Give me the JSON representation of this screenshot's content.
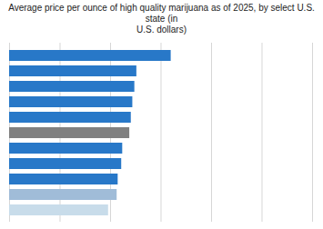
{
  "chart_data": {
    "type": "bar",
    "orientation": "horizontal",
    "title": "Average price per ounce of high quality marijuana as of 2025, by select U.S. state (in\nU.S. dollars)",
    "categories": [
      null,
      null,
      null,
      null,
      null,
      null,
      null,
      null,
      null,
      null,
      null
    ],
    "values": [
      320,
      252,
      248,
      244,
      241,
      238,
      224,
      222,
      215,
      213,
      196
    ],
    "colors": [
      "#2878c8",
      "#2878c8",
      "#2878c8",
      "#2878c8",
      "#2878c8",
      "#808080",
      "#2878c8",
      "#2878c8",
      "#2878c8",
      "#a0bcd8",
      "#c8dcea"
    ],
    "xlim": [
      0,
      600
    ],
    "xticks": [
      0,
      100,
      200,
      300,
      400,
      500,
      600
    ],
    "grid": true,
    "tick_labels": false
  }
}
